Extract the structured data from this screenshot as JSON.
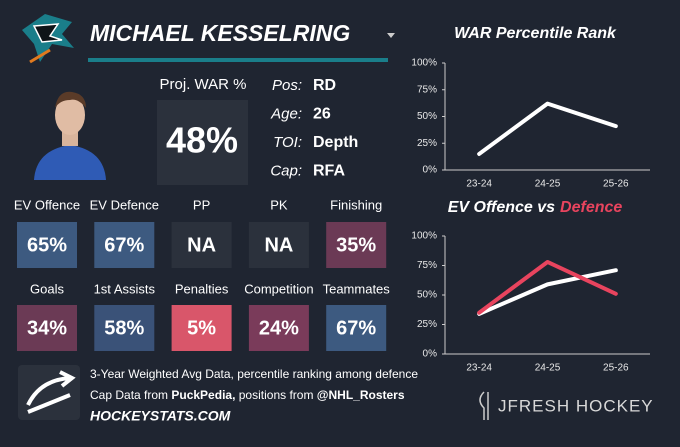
{
  "player": {
    "name": "MICHAEL KESSELRING",
    "proj_war_label": "Proj. WAR %",
    "proj_war": "48%",
    "bio": [
      {
        "label": "Pos:",
        "value": "RD"
      },
      {
        "label": "Age:",
        "value": "26"
      },
      {
        "label": "TOI:",
        "value": "Depth"
      },
      {
        "label": "Cap:",
        "value": "RFA"
      }
    ]
  },
  "tiles": [
    {
      "label": "EV Offence",
      "value": "65%",
      "color": "#3d5a80"
    },
    {
      "label": "EV Defence",
      "value": "67%",
      "color": "#3d5a80"
    },
    {
      "label": "PP",
      "value": "NA",
      "color": "#2b313c"
    },
    {
      "label": "PK",
      "value": "NA",
      "color": "#2b313c"
    },
    {
      "label": "Finishing",
      "value": "35%",
      "color": "#6b3a55"
    },
    {
      "label": "Goals",
      "value": "34%",
      "color": "#6b3a55"
    },
    {
      "label": "1st Assists",
      "value": "58%",
      "color": "#3a5278"
    },
    {
      "label": "Penalties",
      "value": "5%",
      "color": "#d9566a"
    },
    {
      "label": "Competition",
      "value": "24%",
      "color": "#7a3b5a"
    },
    {
      "label": "Teammates",
      "value": "67%",
      "color": "#3d5a80"
    }
  ],
  "footer": {
    "line1": "3-Year Weighted Avg Data, percentile ranking among defence",
    "line2": [
      "Cap Data from",
      "PuckPedia,",
      "positions from",
      "@NHL_Rosters"
    ],
    "site": "HOCKEYSTATS.COM",
    "brand": "JFRESH HOCKEY"
  },
  "chart_data": [
    {
      "type": "line",
      "title": "WAR Percentile Rank",
      "categories": [
        "23-24",
        "24-25",
        "25-26"
      ],
      "series": [
        {
          "color": "#ffffff",
          "values": [
            15,
            62,
            41
          ]
        }
      ],
      "ylim": [
        0,
        100
      ],
      "yticks": [
        {
          "value": 0,
          "label": "0%"
        },
        {
          "value": 25,
          "label": "25%"
        },
        {
          "value": 50,
          "label": "50%"
        },
        {
          "value": 75,
          "label": "75%"
        },
        {
          "value": 100,
          "label": "100%"
        }
      ]
    },
    {
      "type": "line",
      "title": "EV Offence vs",
      "title_accent": "Defence",
      "title_accent_color": "#e8445e",
      "categories": [
        "23-24",
        "24-25",
        "25-26"
      ],
      "series": [
        {
          "color": "#ffffff",
          "values": [
            34,
            59,
            71
          ]
        },
        {
          "color": "#e8445e",
          "values": [
            35,
            78,
            51
          ]
        }
      ],
      "ylim": [
        0,
        100
      ],
      "yticks": [
        {
          "value": 0,
          "label": "0%"
        },
        {
          "value": 25,
          "label": "25%"
        },
        {
          "value": 50,
          "label": "50%"
        },
        {
          "value": 75,
          "label": "75%"
        },
        {
          "value": 100,
          "label": "100%"
        }
      ]
    }
  ]
}
